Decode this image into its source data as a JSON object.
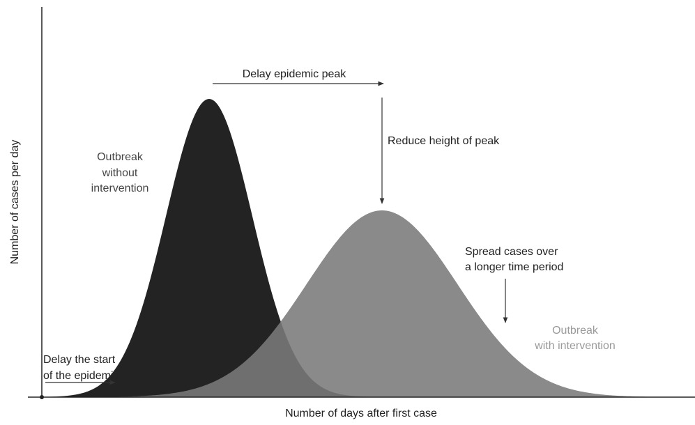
{
  "header": {
    "peak_delay": "Delay epidemic peak",
    "peak_reduce": "Reduce height of peak"
  },
  "labels": {
    "without_intervention": [
      "Outbreak",
      "without",
      "intervention"
    ],
    "spread": [
      "Spread cases over",
      "a longer time period"
    ],
    "with_intervention": [
      "Outbreak",
      "with intervention"
    ],
    "delay_start": [
      "Delay the start",
      "of the epidemic"
    ]
  },
  "axes": {
    "y": "Number of cases per day",
    "x": "Number of days after first case"
  }
}
